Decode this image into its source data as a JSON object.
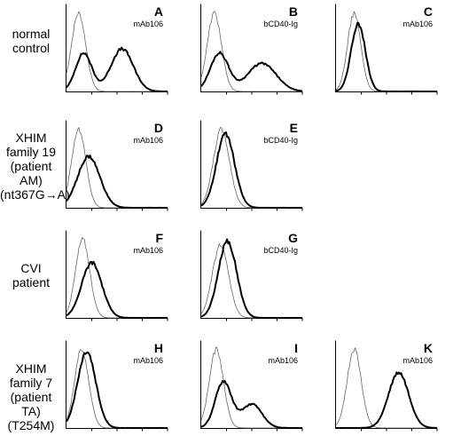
{
  "rows": [
    {
      "label": [
        "normal",
        "control"
      ]
    },
    {
      "label": [
        "XHIM",
        "family 19",
        "(patient AM)",
        "(nt367G→A)"
      ]
    },
    {
      "label": [
        "CVI",
        "patient"
      ]
    },
    {
      "label": [
        "XHIM",
        "family 7",
        "(patient TA)",
        "(T254M)"
      ]
    }
  ],
  "chart_data": [
    {
      "type": "line",
      "panel": "A",
      "annotation": "mAb106",
      "series": [
        {
          "style": "thin",
          "peaks": [
            {
              "center": 0.12,
              "width": 0.07,
              "height": 0.92
            }
          ]
        },
        {
          "style": "thick",
          "peaks": [
            {
              "center": 0.17,
              "width": 0.08,
              "height": 0.45
            },
            {
              "center": 0.55,
              "width": 0.11,
              "height": 0.5
            }
          ]
        }
      ]
    },
    {
      "type": "line",
      "panel": "B",
      "annotation": "bCD40-Ig",
      "series": [
        {
          "style": "thin",
          "peaks": [
            {
              "center": 0.13,
              "width": 0.07,
              "height": 0.92
            }
          ]
        },
        {
          "style": "thick",
          "peaks": [
            {
              "center": 0.18,
              "width": 0.09,
              "height": 0.45
            },
            {
              "center": 0.6,
              "width": 0.14,
              "height": 0.33
            }
          ]
        }
      ]
    },
    {
      "type": "line",
      "panel": "C",
      "annotation": "mAb106",
      "series": [
        {
          "style": "thin",
          "peaks": [
            {
              "center": 0.18,
              "width": 0.065,
              "height": 0.92
            }
          ]
        },
        {
          "style": "thick",
          "peaks": [
            {
              "center": 0.22,
              "width": 0.07,
              "height": 0.8
            }
          ]
        }
      ]
    },
    {
      "type": "line",
      "panel": "D",
      "annotation": "mAb106",
      "series": [
        {
          "style": "thin",
          "peaks": [
            {
              "center": 0.12,
              "width": 0.07,
              "height": 0.92
            }
          ]
        },
        {
          "style": "thick",
          "peaks": [
            {
              "center": 0.22,
              "width": 0.11,
              "height": 0.6
            }
          ]
        }
      ]
    },
    {
      "type": "line",
      "panel": "E",
      "annotation": "bCD40-Ig",
      "series": [
        {
          "style": "thin",
          "peaks": [
            {
              "center": 0.2,
              "width": 0.08,
              "height": 0.92
            }
          ]
        },
        {
          "style": "thick",
          "peaks": [
            {
              "center": 0.24,
              "width": 0.09,
              "height": 0.86
            }
          ]
        }
      ]
    },
    {
      "type": "line",
      "panel": "F",
      "annotation": "mAb106",
      "series": [
        {
          "style": "thin",
          "peaks": [
            {
              "center": 0.16,
              "width": 0.07,
              "height": 0.92
            }
          ]
        },
        {
          "style": "thick",
          "peaks": [
            {
              "center": 0.25,
              "width": 0.1,
              "height": 0.65
            }
          ]
        }
      ]
    },
    {
      "type": "line",
      "panel": "G",
      "annotation": "bCD40-Ig",
      "series": [
        {
          "style": "thin",
          "peaks": [
            {
              "center": 0.19,
              "width": 0.08,
              "height": 0.85
            }
          ]
        },
        {
          "style": "thick",
          "peaks": [
            {
              "center": 0.26,
              "width": 0.09,
              "height": 0.9
            }
          ]
        }
      ]
    },
    {
      "type": "line",
      "panel": "H",
      "annotation": "mAb106",
      "series": [
        {
          "style": "thin",
          "peaks": [
            {
              "center": 0.15,
              "width": 0.07,
              "height": 0.92
            }
          ]
        },
        {
          "style": "thick",
          "peaks": [
            {
              "center": 0.2,
              "width": 0.09,
              "height": 0.9
            }
          ]
        }
      ]
    },
    {
      "type": "line",
      "panel": "I",
      "annotation": "mAb106",
      "series": [
        {
          "style": "thin",
          "peaks": [
            {
              "center": 0.15,
              "width": 0.07,
              "height": 0.92
            }
          ]
        },
        {
          "style": "thick",
          "peaks": [
            {
              "center": 0.22,
              "width": 0.08,
              "height": 0.55
            },
            {
              "center": 0.5,
              "width": 0.1,
              "height": 0.28
            }
          ]
        }
      ]
    },
    {
      "type": "line",
      "panel": "K",
      "annotation": "mAb106",
      "series": [
        {
          "style": "thin",
          "peaks": [
            {
              "center": 0.18,
              "width": 0.07,
              "height": 0.92
            }
          ]
        },
        {
          "style": "thick",
          "peaks": [
            {
              "center": 0.62,
              "width": 0.1,
              "height": 0.65
            }
          ]
        }
      ]
    }
  ]
}
